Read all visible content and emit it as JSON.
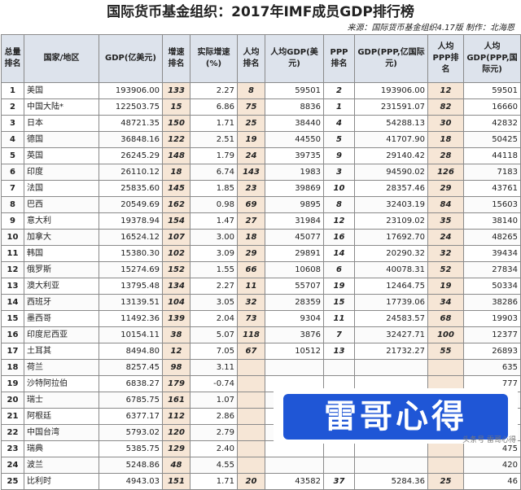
{
  "title": "国际货币基金组织：2017年IMF成员GDP排行榜",
  "source": "来源：国际货币基金组织4.17版  制作：北海恩",
  "columns": [
    "总量排名",
    "国家/地区",
    "GDP(亿美元)",
    "增速排名",
    "实际增速(%)",
    "人均排名",
    "人均GDP(美元)",
    "PPP排名",
    "GDP(PPP,亿国际元)",
    "人均PPP排名",
    "人均GDP(PPP,国际元)"
  ],
  "rows": [
    {
      "rank": "1",
      "country": "美国",
      "gdp": "193906.00",
      "growth_rank": "133",
      "growth": "2.27",
      "pc_rank": "8",
      "pc_gdp": "59501",
      "ppp_rank": "2",
      "ppp_gdp": "193906.00",
      "pc_ppp_rank": "12",
      "pc_ppp": "59501"
    },
    {
      "rank": "2",
      "country": "中国大陆*",
      "gdp": "122503.75",
      "growth_rank": "15",
      "growth": "6.86",
      "pc_rank": "75",
      "pc_gdp": "8836",
      "ppp_rank": "1",
      "ppp_gdp": "231591.07",
      "pc_ppp_rank": "82",
      "pc_ppp": "16660"
    },
    {
      "rank": "3",
      "country": "日本",
      "gdp": "48721.35",
      "growth_rank": "150",
      "growth": "1.71",
      "pc_rank": "25",
      "pc_gdp": "38440",
      "ppp_rank": "4",
      "ppp_gdp": "54288.13",
      "pc_ppp_rank": "30",
      "pc_ppp": "42832"
    },
    {
      "rank": "4",
      "country": "德国",
      "gdp": "36848.16",
      "growth_rank": "122",
      "growth": "2.51",
      "pc_rank": "19",
      "pc_gdp": "44550",
      "ppp_rank": "5",
      "ppp_gdp": "41707.90",
      "pc_ppp_rank": "18",
      "pc_ppp": "50425"
    },
    {
      "rank": "5",
      "country": "英国",
      "gdp": "26245.29",
      "growth_rank": "148",
      "growth": "1.79",
      "pc_rank": "24",
      "pc_gdp": "39735",
      "ppp_rank": "9",
      "ppp_gdp": "29140.42",
      "pc_ppp_rank": "28",
      "pc_ppp": "44118"
    },
    {
      "rank": "6",
      "country": "印度",
      "gdp": "26110.12",
      "growth_rank": "18",
      "growth": "6.74",
      "pc_rank": "143",
      "pc_gdp": "1983",
      "ppp_rank": "3",
      "ppp_gdp": "94590.02",
      "pc_ppp_rank": "126",
      "pc_ppp": "7183"
    },
    {
      "rank": "7",
      "country": "法国",
      "gdp": "25835.60",
      "growth_rank": "145",
      "growth": "1.85",
      "pc_rank": "23",
      "pc_gdp": "39869",
      "ppp_rank": "10",
      "ppp_gdp": "28357.46",
      "pc_ppp_rank": "29",
      "pc_ppp": "43761"
    },
    {
      "rank": "8",
      "country": "巴西",
      "gdp": "20549.69",
      "growth_rank": "162",
      "growth": "0.98",
      "pc_rank": "69",
      "pc_gdp": "9895",
      "ppp_rank": "8",
      "ppp_gdp": "32403.19",
      "pc_ppp_rank": "84",
      "pc_ppp": "15603"
    },
    {
      "rank": "9",
      "country": "意大利",
      "gdp": "19378.94",
      "growth_rank": "154",
      "growth": "1.47",
      "pc_rank": "27",
      "pc_gdp": "31984",
      "ppp_rank": "12",
      "ppp_gdp": "23109.02",
      "pc_ppp_rank": "35",
      "pc_ppp": "38140"
    },
    {
      "rank": "10",
      "country": "加拿大",
      "gdp": "16524.12",
      "growth_rank": "107",
      "growth": "3.00",
      "pc_rank": "18",
      "pc_gdp": "45077",
      "ppp_rank": "16",
      "ppp_gdp": "17692.70",
      "pc_ppp_rank": "24",
      "pc_ppp": "48265"
    },
    {
      "rank": "11",
      "country": "韩国",
      "gdp": "15380.30",
      "growth_rank": "102",
      "growth": "3.09",
      "pc_rank": "29",
      "pc_gdp": "29891",
      "ppp_rank": "14",
      "ppp_gdp": "20290.32",
      "pc_ppp_rank": "32",
      "pc_ppp": "39434"
    },
    {
      "rank": "12",
      "country": "俄罗斯",
      "gdp": "15274.69",
      "growth_rank": "152",
      "growth": "1.55",
      "pc_rank": "66",
      "pc_gdp": "10608",
      "ppp_rank": "6",
      "ppp_gdp": "40078.31",
      "pc_ppp_rank": "52",
      "pc_ppp": "27834"
    },
    {
      "rank": "13",
      "country": "澳大利亚",
      "gdp": "13795.48",
      "growth_rank": "134",
      "growth": "2.27",
      "pc_rank": "11",
      "pc_gdp": "55707",
      "ppp_rank": "19",
      "ppp_gdp": "12464.75",
      "pc_ppp_rank": "19",
      "pc_ppp": "50334"
    },
    {
      "rank": "14",
      "country": "西班牙",
      "gdp": "13139.51",
      "growth_rank": "104",
      "growth": "3.05",
      "pc_rank": "32",
      "pc_gdp": "28359",
      "ppp_rank": "15",
      "ppp_gdp": "17739.06",
      "pc_ppp_rank": "34",
      "pc_ppp": "38286"
    },
    {
      "rank": "15",
      "country": "墨西哥",
      "gdp": "11492.36",
      "growth_rank": "139",
      "growth": "2.04",
      "pc_rank": "73",
      "pc_gdp": "9304",
      "ppp_rank": "11",
      "ppp_gdp": "24583.57",
      "pc_ppp_rank": "68",
      "pc_ppp": "19903"
    },
    {
      "rank": "16",
      "country": "印度尼西亚",
      "gdp": "10154.11",
      "growth_rank": "38",
      "growth": "5.07",
      "pc_rank": "118",
      "pc_gdp": "3876",
      "ppp_rank": "7",
      "ppp_gdp": "32427.71",
      "pc_ppp_rank": "100",
      "pc_ppp": "12377"
    },
    {
      "rank": "17",
      "country": "土耳其",
      "gdp": "8494.80",
      "growth_rank": "12",
      "growth": "7.05",
      "pc_rank": "67",
      "pc_gdp": "10512",
      "ppp_rank": "13",
      "ppp_gdp": "21732.27",
      "pc_ppp_rank": "55",
      "pc_ppp": "26893"
    },
    {
      "rank": "18",
      "country": "荷兰",
      "gdp": "8257.45",
      "growth_rank": "98",
      "growth": "3.11",
      "pc_rank": "",
      "pc_gdp": "",
      "ppp_rank": "",
      "ppp_gdp": "",
      "pc_ppp_rank": "",
      "pc_ppp": "635"
    },
    {
      "rank": "19",
      "country": "沙特阿拉伯",
      "gdp": "6838.27",
      "growth_rank": "179",
      "growth": "-0.74",
      "pc_rank": "",
      "pc_gdp": "",
      "ppp_rank": "",
      "ppp_gdp": "",
      "pc_ppp_rank": "",
      "pc_ppp": "777"
    },
    {
      "rank": "20",
      "country": "瑞士",
      "gdp": "6785.75",
      "growth_rank": "161",
      "growth": "1.07",
      "pc_rank": "",
      "pc_gdp": "",
      "ppp_rank": "",
      "ppp_gdp": "",
      "pc_ppp_rank": "",
      "pc_ppp": "997"
    },
    {
      "rank": "21",
      "country": "阿根廷",
      "gdp": "6377.17",
      "growth_rank": "112",
      "growth": "2.86",
      "pc_rank": "",
      "pc_gdp": "",
      "ppp_rank": "",
      "ppp_gdp": "",
      "pc_ppp_rank": "",
      "pc_ppp": "227"
    },
    {
      "rank": "22",
      "country": "中国台湾",
      "gdp": "5793.02",
      "growth_rank": "120",
      "growth": "2.79",
      "pc_rank": "",
      "pc_gdp": "",
      "ppp_rank": "",
      "ppp_gdp": "",
      "pc_ppp_rank": "",
      "pc_ppp": "375"
    },
    {
      "rank": "23",
      "country": "瑞典",
      "gdp": "5385.75",
      "growth_rank": "129",
      "growth": "2.40",
      "pc_rank": "",
      "pc_gdp": "",
      "ppp_rank": "",
      "ppp_gdp": "",
      "pc_ppp_rank": "",
      "pc_ppp": "475"
    },
    {
      "rank": "24",
      "country": "波兰",
      "gdp": "5248.86",
      "growth_rank": "48",
      "growth": "4.55",
      "pc_rank": "",
      "pc_gdp": "",
      "ppp_rank": "",
      "ppp_gdp": "",
      "pc_ppp_rank": "",
      "pc_ppp": "420"
    },
    {
      "rank": "25",
      "country": "比利时",
      "gdp": "4943.03",
      "growth_rank": "151",
      "growth": "1.71",
      "pc_rank": "20",
      "pc_gdp": "43582",
      "ppp_rank": "37",
      "ppp_gdp": "5284.36",
      "pc_ppp_rank": "25",
      "pc_ppp": "46"
    }
  ],
  "watermark": {
    "text": "雷哥心得",
    "caption": "头条号 雷哥心得"
  }
}
